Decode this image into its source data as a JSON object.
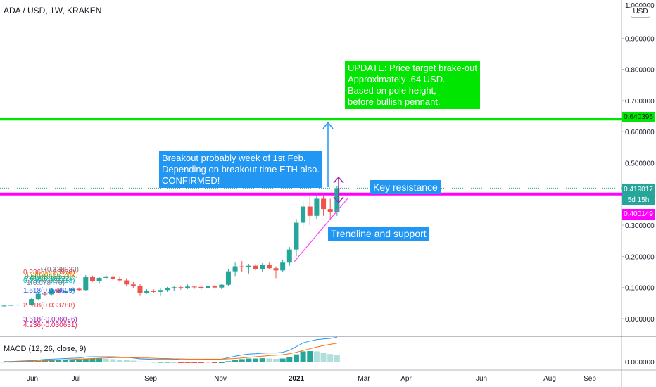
{
  "header": {
    "symbol_title": "ADA / USD, 1W, KRAKEN",
    "currency_button": "USD"
  },
  "colors": {
    "up": "#26a69a",
    "down": "#ef5350",
    "target_line": "#00e600",
    "resistance_line": "#ff00ff",
    "note_blue": "#2196f3",
    "note_green": "#00e600",
    "trendline": "#ff3cff",
    "arrow_blue": "#2196f3",
    "arrow_purple": "#9c27b0",
    "macd_line": "#2196f3",
    "signal_line": "#ff6d00"
  },
  "price_axis": {
    "top_label": "1.000000",
    "ticks": [
      "0.900000",
      "0.800000",
      "0.700000",
      "0.600000",
      "0.500000",
      "0.300000",
      "0.200000",
      "0.100000",
      "0.000000"
    ]
  },
  "macd_axis": {
    "ticks": [
      "0.000000"
    ]
  },
  "price_tags": {
    "target": "0.640395",
    "last": "0.419017",
    "countdown": "5d 15h",
    "resistance": "0.400149"
  },
  "time_axis": {
    "labels": [
      "Jun",
      "Jul",
      "Sep",
      "Nov",
      "2021",
      "Mar",
      "Apr",
      "Jun",
      "Aug",
      "Sep"
    ]
  },
  "macd_label": "MACD (12, 26, close, 9)",
  "annotations": {
    "update": "UPDATE: Price target brake-out\nApproximately .64 USD.\nBased on pole height,\nbefore bullish pennant.",
    "breakout": "Breakout probably week of 1st Feb.\nDepending on breakout time ETH also.\nCONFIRMED!",
    "key_resistance": "Key resistance",
    "trendline": "Trendline and support"
  },
  "fib_labels": [
    {
      "text": "0(0.138033)",
      "color": "#787b86"
    },
    {
      "text": "0.236(0.123978)",
      "color": "#f23645"
    },
    {
      "text": "0.382(0.115282)",
      "color": "#ff9800"
    },
    {
      "text": "0.5(0.108253)",
      "color": "#4caf50"
    },
    {
      "text": "0.618(0.101224)",
      "color": "#089981"
    },
    {
      "text": "0.786(0.091218)",
      "color": "#00bcd4"
    },
    {
      "text": "1(0.078470)",
      "color": "#787b86"
    },
    {
      "text": "1.618(0.073609)",
      "color": "#2962ff"
    },
    {
      "text": "2.618(0.033788)",
      "color": "#f23645"
    },
    {
      "text": "3.618(-0.006026)",
      "color": "#9c27b0"
    },
    {
      "text": "4.236(-0.030631)",
      "color": "#e91e63"
    }
  ],
  "chart_data": {
    "type": "candlestick",
    "symbol": "ADA/USD",
    "interval": "1W",
    "exchange": "KRAKEN",
    "ylim": [
      -0.03,
      1.0
    ],
    "horizontal_levels": [
      {
        "name": "target",
        "value": 0.640395
      },
      {
        "name": "resistance",
        "value": 0.400149
      }
    ],
    "candles": [
      [
        0.041,
        0.045,
        0.038,
        0.042
      ],
      [
        0.042,
        0.046,
        0.04,
        0.044
      ],
      [
        0.044,
        0.047,
        0.041,
        0.045
      ],
      [
        0.045,
        0.047,
        0.041,
        0.043
      ],
      [
        0.043,
        0.065,
        0.042,
        0.063
      ],
      [
        0.063,
        0.085,
        0.06,
        0.08
      ],
      [
        0.08,
        0.086,
        0.074,
        0.078
      ],
      [
        0.078,
        0.097,
        0.076,
        0.094
      ],
      [
        0.094,
        0.098,
        0.082,
        0.084
      ],
      [
        0.084,
        0.096,
        0.08,
        0.09
      ],
      [
        0.09,
        0.1,
        0.086,
        0.096
      ],
      [
        0.096,
        0.1,
        0.088,
        0.092
      ],
      [
        0.092,
        0.14,
        0.09,
        0.134
      ],
      [
        0.134,
        0.138,
        0.118,
        0.121
      ],
      [
        0.121,
        0.135,
        0.114,
        0.131
      ],
      [
        0.131,
        0.141,
        0.126,
        0.136
      ],
      [
        0.136,
        0.145,
        0.122,
        0.128
      ],
      [
        0.128,
        0.134,
        0.119,
        0.123
      ],
      [
        0.123,
        0.13,
        0.105,
        0.11
      ],
      [
        0.11,
        0.118,
        0.098,
        0.104
      ],
      [
        0.104,
        0.111,
        0.075,
        0.083
      ],
      [
        0.083,
        0.095,
        0.08,
        0.09
      ],
      [
        0.09,
        0.094,
        0.082,
        0.086
      ],
      [
        0.086,
        0.097,
        0.075,
        0.092
      ],
      [
        0.092,
        0.102,
        0.086,
        0.097
      ],
      [
        0.097,
        0.106,
        0.09,
        0.101
      ],
      [
        0.101,
        0.105,
        0.093,
        0.099
      ],
      [
        0.099,
        0.11,
        0.095,
        0.103
      ],
      [
        0.103,
        0.106,
        0.096,
        0.102
      ],
      [
        0.102,
        0.107,
        0.094,
        0.098
      ],
      [
        0.098,
        0.108,
        0.093,
        0.104
      ],
      [
        0.104,
        0.108,
        0.096,
        0.1
      ],
      [
        0.1,
        0.112,
        0.095,
        0.109
      ],
      [
        0.109,
        0.16,
        0.106,
        0.152
      ],
      [
        0.152,
        0.18,
        0.137,
        0.168
      ],
      [
        0.168,
        0.185,
        0.15,
        0.165
      ],
      [
        0.165,
        0.176,
        0.145,
        0.17
      ],
      [
        0.17,
        0.175,
        0.155,
        0.16
      ],
      [
        0.16,
        0.178,
        0.15,
        0.172
      ],
      [
        0.172,
        0.18,
        0.16,
        0.162
      ],
      [
        0.162,
        0.168,
        0.13,
        0.155
      ],
      [
        0.155,
        0.19,
        0.15,
        0.18
      ],
      [
        0.18,
        0.23,
        0.17,
        0.222
      ],
      [
        0.222,
        0.32,
        0.2,
        0.308
      ],
      [
        0.308,
        0.38,
        0.29,
        0.36
      ],
      [
        0.36,
        0.395,
        0.3,
        0.33
      ],
      [
        0.33,
        0.395,
        0.32,
        0.385
      ],
      [
        0.385,
        0.395,
        0.33,
        0.352
      ],
      [
        0.352,
        0.385,
        0.32,
        0.343
      ],
      [
        0.343,
        0.425,
        0.33,
        0.419
      ]
    ],
    "macd": {
      "histogram": [
        0.002,
        0.002,
        0.003,
        0.003,
        0.004,
        0.006,
        0.007,
        0.008,
        0.008,
        0.009,
        0.01,
        0.01,
        0.013,
        0.013,
        0.013,
        0.012,
        0.011,
        0.009,
        0.008,
        0.006,
        0.003,
        0.002,
        0.001,
        0.001,
        0.001,
        0.0,
        -0.001,
        -0.002,
        -0.002,
        -0.002,
        -0.001,
        -0.001,
        0.0,
        0.004,
        0.008,
        0.011,
        0.013,
        0.013,
        0.014,
        0.013,
        0.012,
        0.013,
        0.018,
        0.027,
        0.037,
        0.038,
        0.037,
        0.032,
        0.028,
        0.026
      ],
      "macd_line": [
        0.003,
        0.003,
        0.004,
        0.005,
        0.006,
        0.008,
        0.01,
        0.011,
        0.012,
        0.013,
        0.014,
        0.015,
        0.018,
        0.019,
        0.019,
        0.019,
        0.019,
        0.018,
        0.017,
        0.015,
        0.012,
        0.011,
        0.01,
        0.01,
        0.01,
        0.01,
        0.009,
        0.009,
        0.009,
        0.009,
        0.01,
        0.01,
        0.011,
        0.016,
        0.021,
        0.025,
        0.028,
        0.029,
        0.031,
        0.032,
        0.032,
        0.034,
        0.041,
        0.053,
        0.066,
        0.072,
        0.077,
        0.079,
        0.081,
        0.085
      ],
      "signal_line": [
        0.002,
        0.002,
        0.003,
        0.003,
        0.004,
        0.005,
        0.006,
        0.007,
        0.008,
        0.009,
        0.01,
        0.011,
        0.012,
        0.013,
        0.014,
        0.015,
        0.016,
        0.016,
        0.016,
        0.016,
        0.015,
        0.015,
        0.014,
        0.013,
        0.013,
        0.012,
        0.012,
        0.011,
        0.011,
        0.011,
        0.011,
        0.011,
        0.011,
        0.012,
        0.013,
        0.015,
        0.017,
        0.019,
        0.021,
        0.023,
        0.024,
        0.026,
        0.029,
        0.034,
        0.04,
        0.046,
        0.052,
        0.057,
        0.061,
        0.065
      ]
    }
  }
}
